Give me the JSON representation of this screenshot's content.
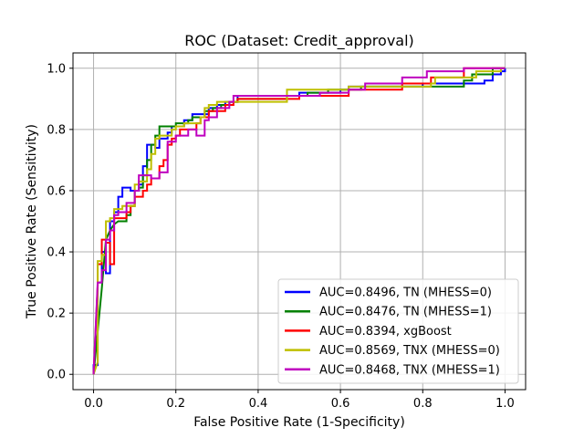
{
  "chart_data": {
    "type": "line",
    "title": "ROC (Dataset: Credit_approval)",
    "xlabel": "False Positive Rate (1-Specificity)",
    "ylabel": "True Positive Rate (Sensitivity)",
    "xlim": [
      -0.05,
      1.05
    ],
    "ylim": [
      -0.05,
      1.05
    ],
    "xticks": [
      0.0,
      0.2,
      0.4,
      0.6,
      0.8,
      1.0
    ],
    "yticks": [
      0.0,
      0.2,
      0.4,
      0.6,
      0.8,
      1.0
    ],
    "xtick_labels": [
      "0.0",
      "0.2",
      "0.4",
      "0.6",
      "0.8",
      "1.0"
    ],
    "ytick_labels": [
      "0.0",
      "0.2",
      "0.4",
      "0.6",
      "0.8",
      "1.0"
    ],
    "grid": true,
    "legend_position": "lower-right",
    "series": [
      {
        "name": "AUC=0.8496, TN (MHESS=0)",
        "color": "#0000ff",
        "points": [
          [
            0,
            0
          ],
          [
            0,
            0.03
          ],
          [
            0.01,
            0.03
          ],
          [
            0.01,
            0.3
          ],
          [
            0.02,
            0.3
          ],
          [
            0.02,
            0.4
          ],
          [
            0.03,
            0.4
          ],
          [
            0.03,
            0.33
          ],
          [
            0.04,
            0.33
          ],
          [
            0.04,
            0.5
          ],
          [
            0.05,
            0.5
          ],
          [
            0.05,
            0.53
          ],
          [
            0.06,
            0.53
          ],
          [
            0.06,
            0.58
          ],
          [
            0.07,
            0.58
          ],
          [
            0.07,
            0.61
          ],
          [
            0.09,
            0.61
          ],
          [
            0.09,
            0.6
          ],
          [
            0.11,
            0.6
          ],
          [
            0.11,
            0.62
          ],
          [
            0.12,
            0.62
          ],
          [
            0.12,
            0.68
          ],
          [
            0.13,
            0.68
          ],
          [
            0.13,
            0.75
          ],
          [
            0.15,
            0.75
          ],
          [
            0.15,
            0.74
          ],
          [
            0.16,
            0.74
          ],
          [
            0.16,
            0.77
          ],
          [
            0.18,
            0.77
          ],
          [
            0.18,
            0.79
          ],
          [
            0.19,
            0.79
          ],
          [
            0.19,
            0.81
          ],
          [
            0.22,
            0.81
          ],
          [
            0.22,
            0.83
          ],
          [
            0.24,
            0.83
          ],
          [
            0.24,
            0.85
          ],
          [
            0.28,
            0.85
          ],
          [
            0.28,
            0.87
          ],
          [
            0.3,
            0.87
          ],
          [
            0.3,
            0.88
          ],
          [
            0.32,
            0.88
          ],
          [
            0.32,
            0.89
          ],
          [
            0.35,
            0.89
          ],
          [
            0.35,
            0.91
          ],
          [
            0.5,
            0.91
          ],
          [
            0.5,
            0.92
          ],
          [
            0.6,
            0.92
          ],
          [
            0.6,
            0.93
          ],
          [
            0.62,
            0.93
          ],
          [
            0.62,
            0.94
          ],
          [
            0.8,
            0.94
          ],
          [
            0.8,
            0.95
          ],
          [
            0.95,
            0.95
          ],
          [
            0.95,
            0.96
          ],
          [
            0.97,
            0.96
          ],
          [
            0.97,
            0.98
          ],
          [
            0.99,
            0.98
          ],
          [
            0.99,
            0.99
          ],
          [
            1,
            0.99
          ],
          [
            1,
            1
          ]
        ]
      },
      {
        "name": "AUC=0.8476, TN (MHESS=1)",
        "color": "#008000",
        "points": [
          [
            0,
            0
          ],
          [
            0.02,
            0.28
          ],
          [
            0.03,
            0.44
          ],
          [
            0.04,
            0.47
          ],
          [
            0.05,
            0.49
          ],
          [
            0.06,
            0.5
          ],
          [
            0.07,
            0.5
          ],
          [
            0.08,
            0.5
          ],
          [
            0.08,
            0.52
          ],
          [
            0.09,
            0.52
          ],
          [
            0.09,
            0.55
          ],
          [
            0.1,
            0.55
          ],
          [
            0.1,
            0.6
          ],
          [
            0.11,
            0.6
          ],
          [
            0.11,
            0.61
          ],
          [
            0.12,
            0.61
          ],
          [
            0.12,
            0.65
          ],
          [
            0.13,
            0.65
          ],
          [
            0.13,
            0.7
          ],
          [
            0.14,
            0.7
          ],
          [
            0.14,
            0.75
          ],
          [
            0.15,
            0.75
          ],
          [
            0.15,
            0.78
          ],
          [
            0.16,
            0.78
          ],
          [
            0.16,
            0.81
          ],
          [
            0.2,
            0.81
          ],
          [
            0.2,
            0.82
          ],
          [
            0.23,
            0.82
          ],
          [
            0.23,
            0.83
          ],
          [
            0.24,
            0.83
          ],
          [
            0.24,
            0.84
          ],
          [
            0.27,
            0.84
          ],
          [
            0.27,
            0.86
          ],
          [
            0.29,
            0.86
          ],
          [
            0.29,
            0.87
          ],
          [
            0.31,
            0.87
          ],
          [
            0.31,
            0.88
          ],
          [
            0.33,
            0.88
          ],
          [
            0.33,
            0.89
          ],
          [
            0.35,
            0.89
          ],
          [
            0.35,
            0.9
          ],
          [
            0.47,
            0.9
          ],
          [
            0.47,
            0.91
          ],
          [
            0.52,
            0.91
          ],
          [
            0.52,
            0.92
          ],
          [
            0.57,
            0.92
          ],
          [
            0.57,
            0.93
          ],
          [
            0.65,
            0.93
          ],
          [
            0.65,
            0.94
          ],
          [
            0.9,
            0.94
          ],
          [
            0.9,
            0.96
          ],
          [
            0.92,
            0.96
          ],
          [
            0.92,
            0.98
          ],
          [
            0.97,
            0.98
          ],
          [
            0.97,
            1
          ],
          [
            1,
            1
          ]
        ]
      },
      {
        "name": "AUC=0.8394, xgBoost",
        "color": "#ff0000",
        "points": [
          [
            0,
            0
          ],
          [
            0.01,
            0.29
          ],
          [
            0.01,
            0.36
          ],
          [
            0.02,
            0.36
          ],
          [
            0.02,
            0.44
          ],
          [
            0.03,
            0.44
          ],
          [
            0.03,
            0.43
          ],
          [
            0.04,
            0.43
          ],
          [
            0.04,
            0.36
          ],
          [
            0.05,
            0.36
          ],
          [
            0.05,
            0.51
          ],
          [
            0.08,
            0.51
          ],
          [
            0.08,
            0.53
          ],
          [
            0.09,
            0.53
          ],
          [
            0.09,
            0.55
          ],
          [
            0.1,
            0.55
          ],
          [
            0.1,
            0.58
          ],
          [
            0.12,
            0.58
          ],
          [
            0.12,
            0.6
          ],
          [
            0.13,
            0.6
          ],
          [
            0.13,
            0.62
          ],
          [
            0.14,
            0.62
          ],
          [
            0.14,
            0.64
          ],
          [
            0.16,
            0.64
          ],
          [
            0.16,
            0.68
          ],
          [
            0.17,
            0.68
          ],
          [
            0.17,
            0.7
          ],
          [
            0.18,
            0.7
          ],
          [
            0.18,
            0.75
          ],
          [
            0.19,
            0.75
          ],
          [
            0.19,
            0.77
          ],
          [
            0.2,
            0.77
          ],
          [
            0.2,
            0.78
          ],
          [
            0.21,
            0.78
          ],
          [
            0.21,
            0.8
          ],
          [
            0.25,
            0.8
          ],
          [
            0.25,
            0.82
          ],
          [
            0.26,
            0.82
          ],
          [
            0.26,
            0.84
          ],
          [
            0.28,
            0.84
          ],
          [
            0.28,
            0.86
          ],
          [
            0.32,
            0.86
          ],
          [
            0.32,
            0.88
          ],
          [
            0.34,
            0.88
          ],
          [
            0.34,
            0.89
          ],
          [
            0.35,
            0.89
          ],
          [
            0.35,
            0.9
          ],
          [
            0.5,
            0.9
          ],
          [
            0.5,
            0.91
          ],
          [
            0.62,
            0.91
          ],
          [
            0.62,
            0.93
          ],
          [
            0.75,
            0.93
          ],
          [
            0.75,
            0.95
          ],
          [
            0.82,
            0.95
          ],
          [
            0.82,
            0.97
          ],
          [
            0.9,
            0.97
          ],
          [
            0.9,
            1
          ],
          [
            1,
            1
          ]
        ]
      },
      {
        "name": "AUC=0.8569, TNX (MHESS=0)",
        "color": "#bfbf00",
        "points": [
          [
            0,
            0
          ],
          [
            0.01,
            0.04
          ],
          [
            0.01,
            0.37
          ],
          [
            0.02,
            0.37
          ],
          [
            0.02,
            0.39
          ],
          [
            0.03,
            0.39
          ],
          [
            0.03,
            0.5
          ],
          [
            0.04,
            0.5
          ],
          [
            0.04,
            0.51
          ],
          [
            0.05,
            0.51
          ],
          [
            0.05,
            0.54
          ],
          [
            0.07,
            0.54
          ],
          [
            0.07,
            0.55
          ],
          [
            0.1,
            0.55
          ],
          [
            0.1,
            0.62
          ],
          [
            0.11,
            0.62
          ],
          [
            0.11,
            0.63
          ],
          [
            0.13,
            0.63
          ],
          [
            0.13,
            0.67
          ],
          [
            0.14,
            0.67
          ],
          [
            0.14,
            0.72
          ],
          [
            0.15,
            0.72
          ],
          [
            0.15,
            0.77
          ],
          [
            0.16,
            0.77
          ],
          [
            0.16,
            0.78
          ],
          [
            0.19,
            0.78
          ],
          [
            0.19,
            0.8
          ],
          [
            0.2,
            0.8
          ],
          [
            0.2,
            0.81
          ],
          [
            0.22,
            0.81
          ],
          [
            0.22,
            0.82
          ],
          [
            0.26,
            0.82
          ],
          [
            0.26,
            0.84
          ],
          [
            0.27,
            0.84
          ],
          [
            0.27,
            0.87
          ],
          [
            0.28,
            0.87
          ],
          [
            0.28,
            0.88
          ],
          [
            0.3,
            0.88
          ],
          [
            0.3,
            0.89
          ],
          [
            0.47,
            0.89
          ],
          [
            0.47,
            0.93
          ],
          [
            0.62,
            0.93
          ],
          [
            0.62,
            0.94
          ],
          [
            0.82,
            0.94
          ],
          [
            0.82,
            0.95
          ],
          [
            0.83,
            0.95
          ],
          [
            0.83,
            0.97
          ],
          [
            0.93,
            0.97
          ],
          [
            0.93,
            0.99
          ],
          [
            0.99,
            0.99
          ],
          [
            0.99,
            1
          ],
          [
            1,
            1
          ]
        ]
      },
      {
        "name": "AUC=0.8468, TNX (MHESS=1)",
        "color": "#bf00bf",
        "points": [
          [
            0,
            0
          ],
          [
            0.01,
            0.3
          ],
          [
            0.02,
            0.3
          ],
          [
            0.02,
            0.34
          ],
          [
            0.03,
            0.34
          ],
          [
            0.03,
            0.44
          ],
          [
            0.04,
            0.44
          ],
          [
            0.04,
            0.47
          ],
          [
            0.05,
            0.47
          ],
          [
            0.05,
            0.52
          ],
          [
            0.06,
            0.52
          ],
          [
            0.06,
            0.53
          ],
          [
            0.08,
            0.53
          ],
          [
            0.08,
            0.56
          ],
          [
            0.1,
            0.56
          ],
          [
            0.1,
            0.6
          ],
          [
            0.11,
            0.6
          ],
          [
            0.11,
            0.65
          ],
          [
            0.14,
            0.65
          ],
          [
            0.14,
            0.64
          ],
          [
            0.16,
            0.64
          ],
          [
            0.16,
            0.66
          ],
          [
            0.18,
            0.66
          ],
          [
            0.18,
            0.76
          ],
          [
            0.2,
            0.76
          ],
          [
            0.2,
            0.78
          ],
          [
            0.23,
            0.78
          ],
          [
            0.23,
            0.8
          ],
          [
            0.25,
            0.8
          ],
          [
            0.25,
            0.78
          ],
          [
            0.27,
            0.78
          ],
          [
            0.27,
            0.83
          ],
          [
            0.28,
            0.83
          ],
          [
            0.28,
            0.84
          ],
          [
            0.3,
            0.84
          ],
          [
            0.3,
            0.87
          ],
          [
            0.33,
            0.87
          ],
          [
            0.33,
            0.89
          ],
          [
            0.34,
            0.89
          ],
          [
            0.34,
            0.91
          ],
          [
            0.55,
            0.91
          ],
          [
            0.55,
            0.92
          ],
          [
            0.62,
            0.92
          ],
          [
            0.62,
            0.93
          ],
          [
            0.66,
            0.93
          ],
          [
            0.66,
            0.95
          ],
          [
            0.75,
            0.95
          ],
          [
            0.75,
            0.97
          ],
          [
            0.81,
            0.97
          ],
          [
            0.81,
            0.99
          ],
          [
            0.9,
            0.99
          ],
          [
            0.9,
            1
          ],
          [
            1,
            1
          ]
        ]
      }
    ]
  }
}
